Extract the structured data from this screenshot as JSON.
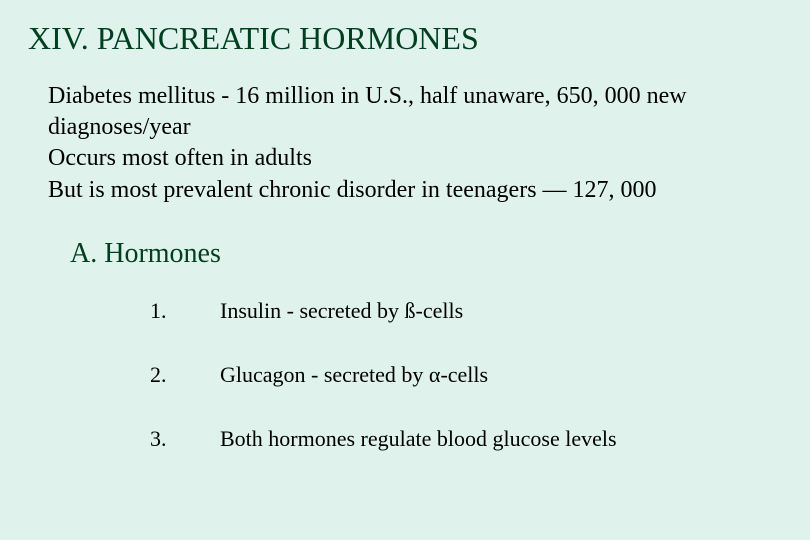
{
  "title": "XIV.  PANCREATIC HORMONES",
  "intro_lines": [
    "Diabetes mellitus - 16 million in U.S., half unaware, 650, 000 new diagnoses/year",
    "Occurs most often in adults",
    "But is most prevalent chronic disorder in teenagers — 127, 000"
  ],
  "section_heading": "A.  Hormones",
  "list_items": [
    {
      "number": "1.",
      "text": "Insulin - secreted by ß-cells"
    },
    {
      "number": "2.",
      "text": "Glucagon - secreted by α-cells"
    },
    {
      "number": "3.",
      "text": "Both hormones regulate blood glucose levels"
    }
  ],
  "colors": {
    "background": "#e0f2ec",
    "heading_text": "#004020",
    "body_text": "#000000"
  },
  "typography": {
    "title_fontsize": 32,
    "intro_fontsize": 24,
    "section_fontsize": 28,
    "list_fontsize": 22,
    "font_family": "Times New Roman"
  }
}
